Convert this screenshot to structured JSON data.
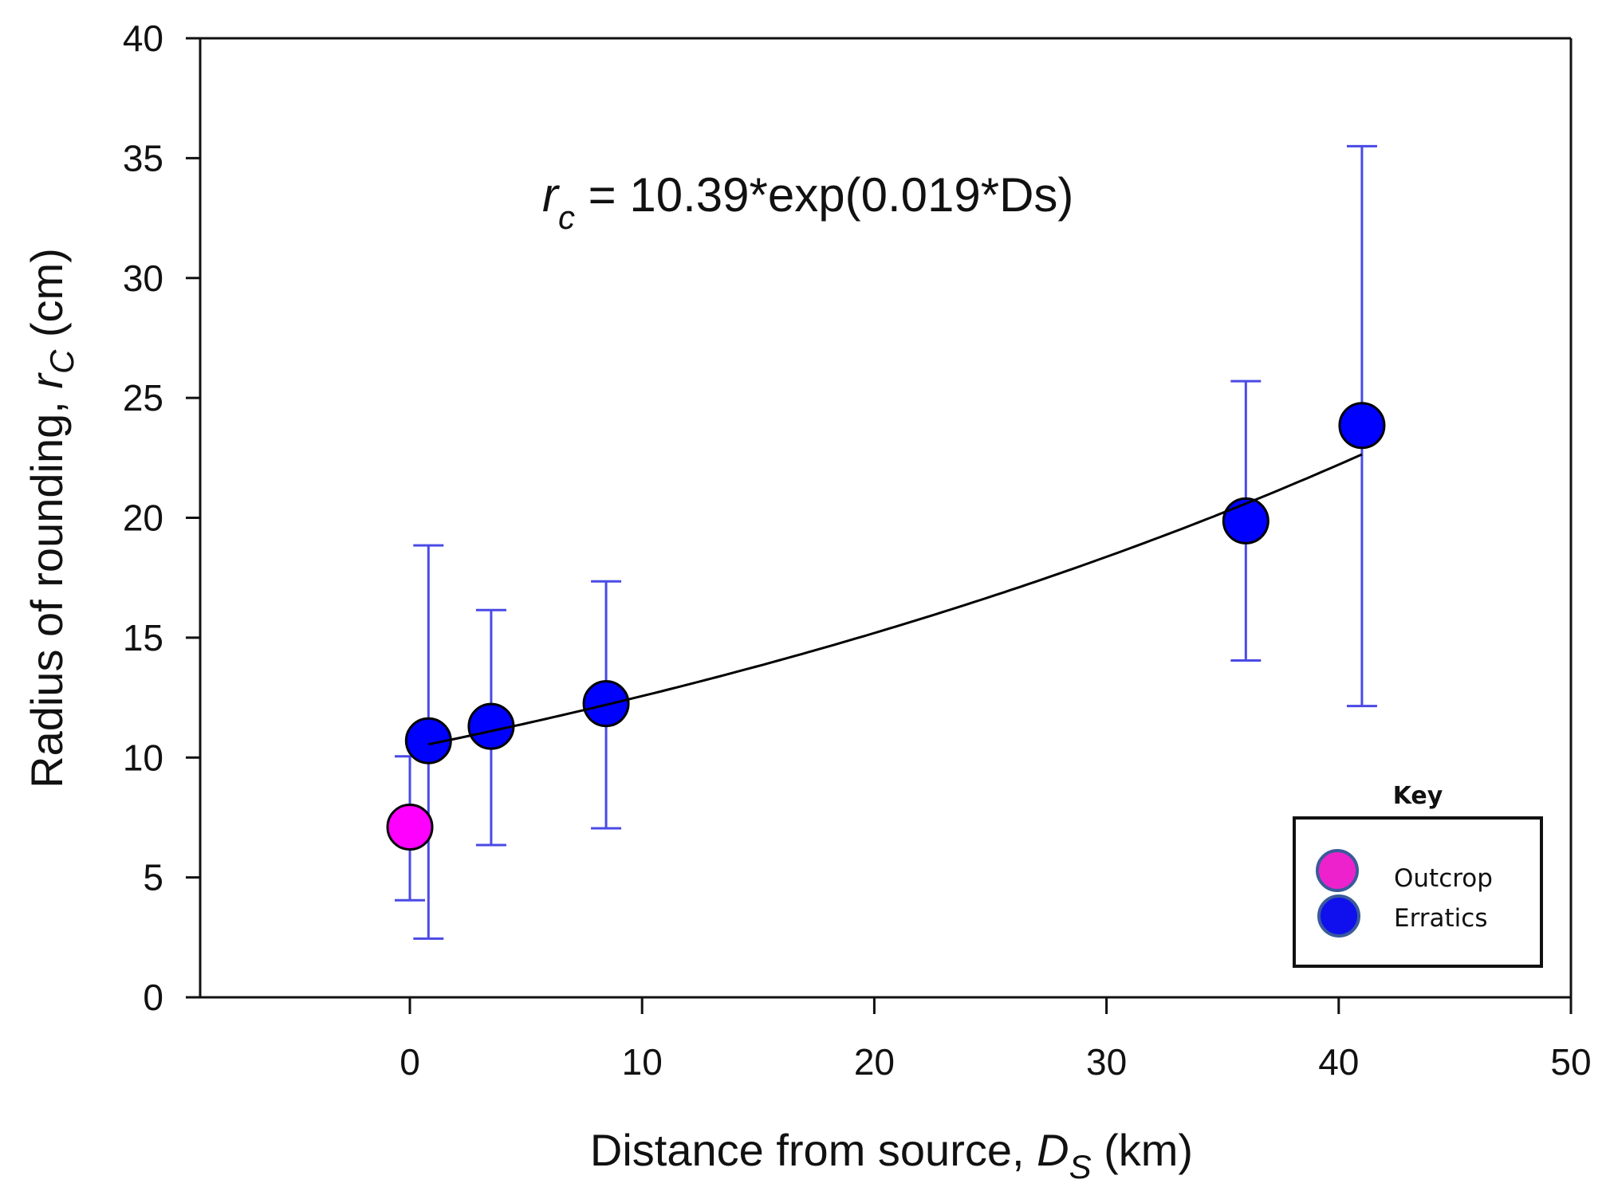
{
  "chart_data": {
    "type": "scatter",
    "title": "",
    "xlabel": {
      "main": "Distance from source, ",
      "symbol": "D",
      "subscript": "S",
      "unit": " (km)"
    },
    "ylabel": {
      "main": "Radius of rounding, ",
      "symbol": "r",
      "subscript": "C",
      "unit": " (cm)"
    },
    "xlim": [
      -9,
      50
    ],
    "ylim": [
      0,
      40
    ],
    "x_ticks": [
      0,
      10,
      20,
      30,
      40,
      50
    ],
    "x_tick_labels": [
      "0",
      "10",
      "20",
      "30",
      "40",
      "50"
    ],
    "y_ticks": [
      0,
      5,
      10,
      15,
      20,
      25,
      30,
      35,
      40
    ],
    "y_tick_labels": [
      "0",
      "5",
      "10",
      "15",
      "20",
      "25",
      "30",
      "35",
      "40"
    ],
    "grid": false,
    "series": [
      {
        "name": "Outcrop",
        "color": "#ff00ff",
        "legend_color": "#ee22cc",
        "points": [
          {
            "x": 0,
            "y": 7.1,
            "err_low": 4.05,
            "err_high": 10.05
          }
        ]
      },
      {
        "name": "Erratics",
        "color": "#0000ff",
        "legend_color": "#1010ee",
        "points": [
          {
            "x": 0.8,
            "y": 10.7,
            "err_low": 2.45,
            "err_high": 18.85
          },
          {
            "x": 3.5,
            "y": 11.3,
            "err_low": 6.35,
            "err_high": 16.15
          },
          {
            "x": 8.45,
            "y": 12.25,
            "err_low": 7.05,
            "err_high": 17.35
          },
          {
            "x": 36.0,
            "y": 19.87,
            "err_low": 14.05,
            "err_high": 25.7
          },
          {
            "x": 41.0,
            "y": 23.85,
            "err_low": 12.15,
            "err_high": 35.5
          }
        ]
      }
    ],
    "fit": {
      "type": "exponential",
      "a": 10.39,
      "b": 0.019,
      "x_range": [
        0.8,
        41.0
      ],
      "color": "#000000",
      "equation": {
        "lhs_symbol": "r",
        "lhs_subscript": "c",
        "rhs": " = 10.39*exp(0.019*Ds)"
      }
    },
    "error_bar_color": "#4a4ae6",
    "legend": {
      "title": "Key",
      "placement": "bottom-right",
      "entries": [
        {
          "label": "Outcrop",
          "color": "#ee22cc"
        },
        {
          "label": "Erratics",
          "color": "#1010ee"
        }
      ],
      "marker_border": "#3a5a9a"
    }
  }
}
